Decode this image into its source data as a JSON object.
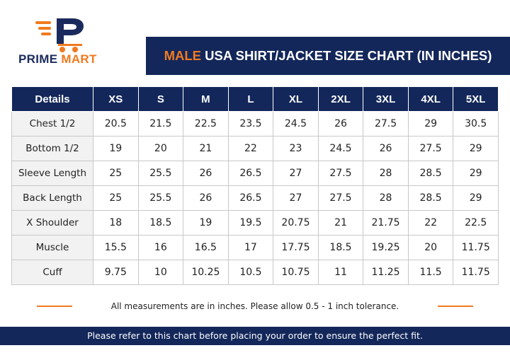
{
  "logo": {
    "word1": "PRIME",
    "word2": "MART"
  },
  "title": {
    "accent": "MALE",
    "rest": " USA SHIRT/JACKET SIZE CHART (IN INCHES)"
  },
  "table": {
    "headers": [
      "Details",
      "XS",
      "S",
      "M",
      "L",
      "XL",
      "2XL",
      "3XL",
      "4XL",
      "5XL"
    ],
    "rows": [
      [
        "Chest 1/2",
        "20.5",
        "21.5",
        "22.5",
        "23.5",
        "24.5",
        "26",
        "27.5",
        "29",
        "30.5"
      ],
      [
        "Bottom 1/2",
        "19",
        "20",
        "21",
        "22",
        "23",
        "24.5",
        "26",
        "27.5",
        "29"
      ],
      [
        "Sleeve Length",
        "25",
        "25.5",
        "26",
        "26.5",
        "27",
        "27.5",
        "28",
        "28.5",
        "29"
      ],
      [
        "Back Length",
        "25",
        "25.5",
        "26",
        "26.5",
        "27",
        "27.5",
        "28",
        "28.5",
        "29"
      ],
      [
        "X Shoulder",
        "18",
        "18.5",
        "19",
        "19.5",
        "20.75",
        "21",
        "21.75",
        "22",
        "22.5"
      ],
      [
        "Muscle",
        "15.5",
        "16",
        "16.5",
        "17",
        "17.75",
        "18.5",
        "19.25",
        "20",
        "11.75"
      ],
      [
        "Cuff",
        "9.75",
        "10",
        "10.25",
        "10.5",
        "10.75",
        "11",
        "11.25",
        "11.5",
        "11.75"
      ]
    ]
  },
  "note": "All measurements are in inches. Please allow 0.5 - 1 inch tolerance.",
  "footer": "Please refer to this chart before placing your order to ensure the perfect fit.",
  "colors": {
    "navy": "#13275a",
    "orange": "#f07a1f"
  }
}
